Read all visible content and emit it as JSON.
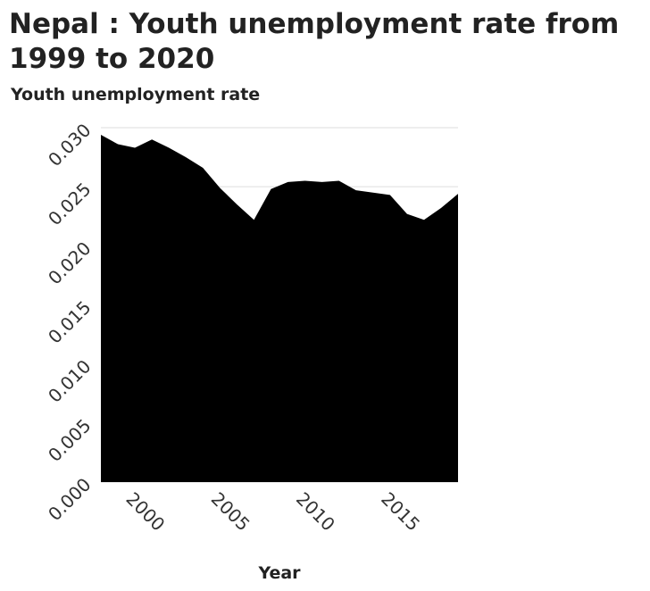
{
  "chart_data": {
    "type": "area",
    "title": "Nepal : Youth unemployment rate from 1999 to 2020",
    "ylabel": "Youth unemployment rate",
    "xlabel": "Year",
    "x": [
      1999,
      2000,
      2001,
      2002,
      2003,
      2004,
      2005,
      2006,
      2007,
      2008,
      2009,
      2010,
      2011,
      2012,
      2013,
      2014,
      2015,
      2016,
      2017,
      2018,
      2019,
      2020
    ],
    "series": [
      {
        "values": [
          0.0294,
          0.0286,
          0.0283,
          0.029,
          0.0283,
          0.0275,
          0.0266,
          0.0249,
          0.0235,
          0.0222,
          0.0248,
          0.0254,
          0.0255,
          0.0254,
          0.0255,
          0.0247,
          0.0245,
          0.0243,
          0.0227,
          0.0222,
          0.0232,
          0.0244
        ],
        "color": "#000000"
      }
    ],
    "xlim": [
      1999,
      2020
    ],
    "ylim": [
      0,
      0.03
    ],
    "xticks": [
      2000,
      2005,
      2010,
      2015
    ],
    "xtick_labels": [
      "2000",
      "2005",
      "2010",
      "2015"
    ],
    "yticks": [
      0,
      0.005,
      0.01,
      0.015,
      0.02,
      0.025,
      0.03
    ],
    "ytick_labels": [
      "0.000",
      "0.005",
      "0.010",
      "0.015",
      "0.020",
      "0.025",
      "0.030"
    ],
    "grid": true,
    "grid_color": "#dddddd",
    "background": "#ffffff"
  }
}
